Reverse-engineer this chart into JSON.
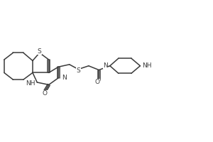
{
  "bg_color": "#ffffff",
  "line_color": "#3a3a3a",
  "line_width": 1.1,
  "font_size": 6.5,
  "fig_width": 3.0,
  "fig_height": 2.0,
  "dpi": 100,
  "xlim": [
    0,
    6.2
  ],
  "ylim": [
    0.1,
    2.0
  ]
}
